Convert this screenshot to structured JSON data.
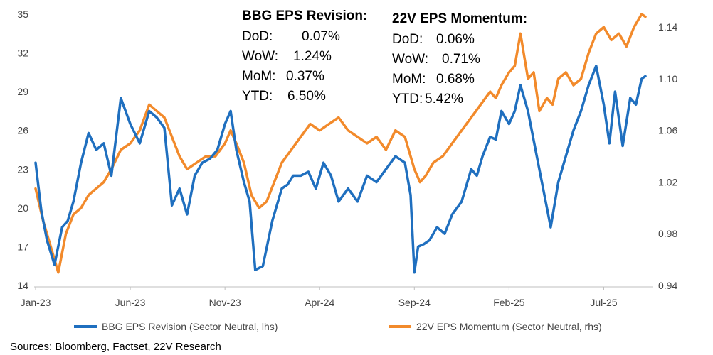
{
  "chart_data": {
    "type": "line",
    "title": "",
    "x_tick_labels": [
      "Jan-23",
      "Jun-23",
      "Nov-23",
      "Apr-24",
      "Sep-24",
      "Feb-25",
      "Jul-25"
    ],
    "x_range_months": [
      0,
      32.5
    ],
    "ylim_left": [
      14,
      35
    ],
    "yticks_left": [
      "14",
      "17",
      "20",
      "23",
      "26",
      "29",
      "32",
      "35"
    ],
    "ylim_right": [
      0.94,
      1.15
    ],
    "yticks_right": [
      "0.94",
      "0.98",
      "1.02",
      "1.06",
      "1.10",
      "1.14"
    ],
    "series": [
      {
        "name": "BBG EPS Revision (Sector Neutral, lhs)",
        "axis": "left",
        "color": "#1f6fbf",
        "x": [
          0,
          0.3,
          0.6,
          1.0,
          1.4,
          1.7,
          2.0,
          2.4,
          2.8,
          3.2,
          3.6,
          4.0,
          4.5,
          5.0,
          5.5,
          6.0,
          6.4,
          6.8,
          7.2,
          7.6,
          8.0,
          8.4,
          8.8,
          9.2,
          9.6,
          10.0,
          10.3,
          10.6,
          11.0,
          11.3,
          11.6,
          12.0,
          12.5,
          13.0,
          13.3,
          13.6,
          14.0,
          14.4,
          14.8,
          15.2,
          15.6,
          16.0,
          16.5,
          17.0,
          17.5,
          18.0,
          18.5,
          19.0,
          19.5,
          19.8,
          20.0,
          20.2,
          20.5,
          20.8,
          21.2,
          21.6,
          22.0,
          22.5,
          23.0,
          23.3,
          23.6,
          24.0,
          24.3,
          24.6,
          25.0,
          25.3,
          25.6,
          26.0,
          26.4,
          26.8,
          27.2,
          27.6,
          28.0,
          28.4,
          28.8,
          29.2,
          29.6,
          30.0,
          30.3,
          30.6,
          31.0,
          31.4,
          31.7,
          32.0,
          32.2
        ],
        "values": [
          23.5,
          19.8,
          17.5,
          15.6,
          18.5,
          19.0,
          20.5,
          23.5,
          25.8,
          24.5,
          25.0,
          22.5,
          28.5,
          26.5,
          25.0,
          27.5,
          27.0,
          26.2,
          20.2,
          21.5,
          19.5,
          22.5,
          23.5,
          23.8,
          24.5,
          26.5,
          27.5,
          24.5,
          22.0,
          20.5,
          15.2,
          15.5,
          19.0,
          21.5,
          21.8,
          22.5,
          22.5,
          22.8,
          21.5,
          23.5,
          22.5,
          20.5,
          21.5,
          20.5,
          22.5,
          22.0,
          23.0,
          24.0,
          23.5,
          21.0,
          15.0,
          17.0,
          17.2,
          17.5,
          18.5,
          18.0,
          19.5,
          20.5,
          23.0,
          22.5,
          24.0,
          25.5,
          25.3,
          27.5,
          26.5,
          27.5,
          29.5,
          27.5,
          24.5,
          21.5,
          18.5,
          22.0,
          24.0,
          26.0,
          27.5,
          29.5,
          31.0,
          28.0,
          25.0,
          29.0,
          24.8,
          28.5,
          28.0,
          30.0,
          30.2
        ]
      },
      {
        "name": "22V EPS Momentum (Sector Neutral, rhs)",
        "axis": "right",
        "color": "#f28a2b",
        "x": [
          0,
          0.4,
          0.8,
          1.2,
          1.6,
          2.0,
          2.4,
          2.8,
          3.2,
          3.6,
          4.0,
          4.5,
          5.0,
          5.5,
          6.0,
          6.4,
          6.8,
          7.2,
          7.6,
          8.0,
          8.5,
          9.0,
          9.5,
          10.0,
          10.3,
          10.6,
          11.0,
          11.4,
          11.8,
          12.2,
          12.6,
          13.0,
          13.5,
          14.0,
          14.5,
          15.0,
          15.5,
          16.0,
          16.5,
          17.0,
          17.5,
          18.0,
          18.5,
          19.0,
          19.5,
          20.0,
          20.3,
          20.6,
          21.0,
          21.5,
          22.0,
          22.5,
          23.0,
          23.5,
          24.0,
          24.3,
          24.6,
          25.0,
          25.3,
          25.6,
          26.0,
          26.3,
          26.6,
          27.0,
          27.3,
          27.6,
          28.0,
          28.4,
          28.8,
          29.2,
          29.6,
          30.0,
          30.4,
          30.8,
          31.2,
          31.6,
          32.0,
          32.2
        ],
        "values": [
          1.015,
          0.99,
          0.97,
          0.95,
          0.98,
          0.995,
          1.0,
          1.01,
          1.015,
          1.02,
          1.03,
          1.045,
          1.05,
          1.06,
          1.08,
          1.075,
          1.07,
          1.055,
          1.04,
          1.03,
          1.035,
          1.04,
          1.04,
          1.05,
          1.06,
          1.05,
          1.035,
          1.01,
          1.0,
          1.005,
          1.02,
          1.035,
          1.045,
          1.055,
          1.065,
          1.06,
          1.065,
          1.07,
          1.06,
          1.055,
          1.05,
          1.055,
          1.045,
          1.06,
          1.055,
          1.03,
          1.02,
          1.025,
          1.035,
          1.04,
          1.05,
          1.06,
          1.07,
          1.08,
          1.09,
          1.085,
          1.095,
          1.105,
          1.11,
          1.135,
          1.1,
          1.105,
          1.075,
          1.085,
          1.08,
          1.1,
          1.105,
          1.095,
          1.1,
          1.12,
          1.135,
          1.14,
          1.13,
          1.135,
          1.125,
          1.14,
          1.15,
          1.148
        ]
      }
    ],
    "annotations": [
      {
        "title": "BBG EPS Revision:",
        "lines": [
          {
            "label": "DoD:",
            "value": "0.07%"
          },
          {
            "label": "WoW:",
            "value": "1.24%"
          },
          {
            "label": "MoM:",
            "value": "0.37%"
          },
          {
            "label": "YTD:",
            "value": "6.50%"
          }
        ]
      },
      {
        "title": "22V EPS Momentum:",
        "lines": [
          {
            "label": "DoD:",
            "value": "0.06%"
          },
          {
            "label": "WoW:",
            "value": "0.71%"
          },
          {
            "label": "MoM:",
            "value": "0.68%"
          },
          {
            "label": "YTD:",
            "value": "5.42%"
          }
        ]
      }
    ],
    "legend_position": "bottom-center",
    "source": "Sources: Bloomberg, Factset, 22V Research"
  }
}
